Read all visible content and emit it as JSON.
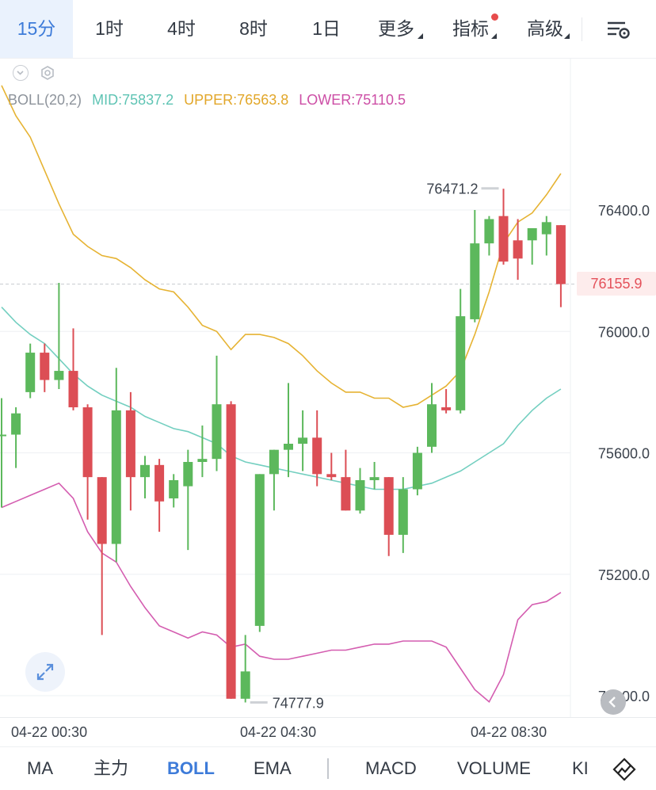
{
  "tabs": [
    {
      "label": "15分",
      "active": true
    },
    {
      "label": "1时"
    },
    {
      "label": "4时"
    },
    {
      "label": "8时"
    },
    {
      "label": "1日"
    },
    {
      "label": "更多"
    },
    {
      "label": "指标"
    },
    {
      "label": "高级"
    }
  ],
  "legend": {
    "name": "BOLL(20,2)",
    "mid": "MID:75837.2",
    "upper": "UPPER:76563.8",
    "lower": "LOWER:75110.5"
  },
  "colors": {
    "up": "#5cb85c",
    "down": "#dc4e55",
    "mid": "#73cfc0",
    "upper": "#e6b333",
    "lower": "#d45db0",
    "grid": "#eef0f3",
    "accent": "#3d7bd9"
  },
  "price_label": "76155.9",
  "icons": {
    "settings": "settings-icon",
    "collapse": "chevron-down-icon",
    "gear": "gear-icon",
    "expand": "expand-icon",
    "back": "arrow-icon",
    "draw": "draw-tool-icon"
  },
  "time_labels": [
    "04-22 00:30",
    "04-22 04:30",
    "04-22 08:30"
  ],
  "indicators": [
    {
      "label": "MA"
    },
    {
      "label": "主力"
    },
    {
      "label": "BOLL",
      "active": true
    },
    {
      "label": "EMA"
    },
    {
      "label": "MACD"
    },
    {
      "label": "VOLUME"
    },
    {
      "label": "KI"
    }
  ],
  "chart_data": {
    "type": "candlestick",
    "ylim": [
      74750,
      76880
    ],
    "yticks": [
      "76400.0",
      "76000.0",
      "75600.0",
      "75200.0",
      "74800.0"
    ],
    "ytick_values": [
      76400,
      76000,
      75600,
      75200,
      74800
    ],
    "last_price": 76155.9,
    "high_label": "76471.2",
    "high_value": 76471.2,
    "low_label": "74777.9",
    "low_value": 74777.9,
    "candles": [
      {
        "o": 75660,
        "h": 75780,
        "l": 75420,
        "c": 75660
      },
      {
        "o": 75660,
        "h": 75750,
        "l": 75550,
        "c": 75730
      },
      {
        "o": 75800,
        "h": 75960,
        "l": 75780,
        "c": 75930
      },
      {
        "o": 75930,
        "h": 75960,
        "l": 75800,
        "c": 75840
      },
      {
        "o": 75840,
        "h": 76160,
        "l": 75810,
        "c": 75870
      },
      {
        "o": 75870,
        "h": 76010,
        "l": 75740,
        "c": 75750
      },
      {
        "o": 75750,
        "h": 75760,
        "l": 75380,
        "c": 75520
      },
      {
        "o": 75520,
        "h": 75520,
        "l": 75000,
        "c": 75300
      },
      {
        "o": 75300,
        "h": 75880,
        "l": 75240,
        "c": 75740
      },
      {
        "o": 75740,
        "h": 75800,
        "l": 75410,
        "c": 75520
      },
      {
        "o": 75520,
        "h": 75590,
        "l": 75450,
        "c": 75560
      },
      {
        "o": 75560,
        "h": 75580,
        "l": 75340,
        "c": 75440
      },
      {
        "o": 75450,
        "h": 75530,
        "l": 75420,
        "c": 75510
      },
      {
        "o": 75490,
        "h": 75610,
        "l": 75280,
        "c": 75570
      },
      {
        "o": 75570,
        "h": 75690,
        "l": 75520,
        "c": 75580
      },
      {
        "o": 75580,
        "h": 75920,
        "l": 75540,
        "c": 75760
      },
      {
        "o": 75760,
        "h": 75770,
        "l": 74790,
        "c": 74790
      },
      {
        "o": 74790,
        "h": 75000,
        "l": 74777.9,
        "c": 74880
      },
      {
        "o": 75030,
        "h": 75530,
        "l": 75010,
        "c": 75530
      },
      {
        "o": 75530,
        "h": 75610,
        "l": 75410,
        "c": 75610
      },
      {
        "o": 75610,
        "h": 75830,
        "l": 75520,
        "c": 75630
      },
      {
        "o": 75630,
        "h": 75740,
        "l": 75540,
        "c": 75650
      },
      {
        "o": 75650,
        "h": 75740,
        "l": 75490,
        "c": 75530
      },
      {
        "o": 75530,
        "h": 75600,
        "l": 75510,
        "c": 75520
      },
      {
        "o": 75520,
        "h": 75610,
        "l": 75410,
        "c": 75410
      },
      {
        "o": 75410,
        "h": 75550,
        "l": 75400,
        "c": 75510
      },
      {
        "o": 75510,
        "h": 75570,
        "l": 75480,
        "c": 75520
      },
      {
        "o": 75520,
        "h": 75520,
        "l": 75260,
        "c": 75330
      },
      {
        "o": 75330,
        "h": 75520,
        "l": 75270,
        "c": 75480
      },
      {
        "o": 75480,
        "h": 75620,
        "l": 75460,
        "c": 75600
      },
      {
        "o": 75620,
        "h": 75830,
        "l": 75600,
        "c": 75760
      },
      {
        "o": 75750,
        "h": 75810,
        "l": 75730,
        "c": 75740
      },
      {
        "o": 75740,
        "h": 76140,
        "l": 75730,
        "c": 76050
      },
      {
        "o": 76040,
        "h": 76400,
        "l": 76030,
        "c": 76290
      },
      {
        "o": 76290,
        "h": 76380,
        "l": 76250,
        "c": 76370
      },
      {
        "o": 76380,
        "h": 76470,
        "l": 76220,
        "c": 76230
      },
      {
        "o": 76300,
        "h": 76370,
        "l": 76170,
        "c": 76240
      },
      {
        "o": 76300,
        "h": 76340,
        "l": 76220,
        "c": 76340
      },
      {
        "o": 76320,
        "h": 76380,
        "l": 76250,
        "c": 76360
      },
      {
        "o": 76350,
        "h": 76350,
        "l": 76080,
        "c": 76155.9
      }
    ],
    "series": [
      {
        "key": "mid",
        "values": [
          76080,
          76030,
          75990,
          75960,
          75910,
          75860,
          75820,
          75790,
          75770,
          75750,
          75720,
          75700,
          75680,
          75670,
          75650,
          75630,
          75590,
          75570,
          75560,
          75550,
          75540,
          75530,
          75520,
          75510,
          75500,
          75490,
          75480,
          75480,
          75480,
          75490,
          75500,
          75520,
          75540,
          75570,
          75600,
          75630,
          75690,
          75740,
          75780,
          75810
        ]
      },
      {
        "key": "upper",
        "values": [
          76810,
          76710,
          76640,
          76530,
          76420,
          76320,
          76280,
          76250,
          76240,
          76210,
          76170,
          76140,
          76130,
          76080,
          76020,
          76000,
          75940,
          75990,
          75990,
          75980,
          75960,
          75920,
          75870,
          75830,
          75800,
          75800,
          75780,
          75780,
          75750,
          75760,
          75790,
          75820,
          75870,
          75990,
          76130,
          76290,
          76360,
          76390,
          76450,
          76520
        ]
      },
      {
        "key": "lower",
        "values": [
          75420,
          75440,
          75460,
          75480,
          75500,
          75450,
          75340,
          75270,
          75240,
          75160,
          75090,
          75030,
          75010,
          74990,
          75010,
          75000,
          74960,
          74970,
          74930,
          74920,
          74920,
          74930,
          74940,
          74950,
          74950,
          74960,
          74970,
          74970,
          74980,
          74980,
          74980,
          74960,
          74890,
          74820,
          74780,
          74870,
          75050,
          75100,
          75110,
          75140
        ]
      }
    ]
  }
}
